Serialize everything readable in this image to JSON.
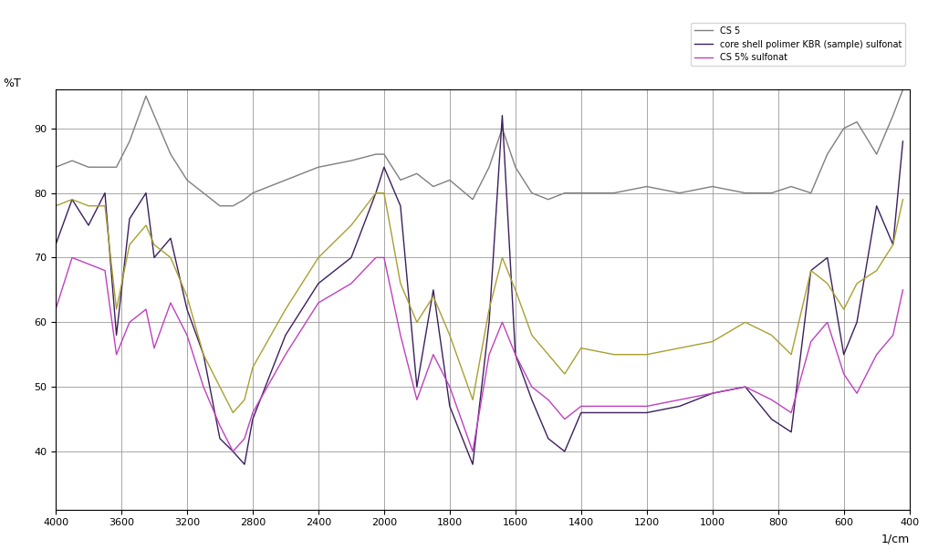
{
  "chart_data": {
    "type": "line",
    "x_label": "1/cm",
    "y_label": "%T",
    "x": [
      4000,
      3900,
      3800,
      3700,
      3630,
      3550,
      3450,
      3400,
      3300,
      3200,
      3100,
      3000,
      2920,
      2850,
      2800,
      2600,
      2400,
      2200,
      2050,
      2000,
      1950,
      1900,
      1850,
      1800,
      1730,
      1680,
      1640,
      1600,
      1550,
      1500,
      1450,
      1400,
      1300,
      1200,
      1100,
      1000,
      900,
      820,
      760,
      700,
      650,
      600,
      560,
      500,
      450,
      420
    ],
    "series": [
      {
        "name": "CS 5",
        "color": "#7f7f7f",
        "values": [
          84,
          85,
          84,
          84,
          84,
          88,
          95,
          92,
          86,
          82,
          80,
          78,
          78,
          79,
          80,
          82,
          84,
          85,
          86,
          86,
          82,
          83,
          81,
          82,
          79,
          84,
          90,
          84,
          80,
          79,
          80,
          80,
          80,
          81,
          80,
          81,
          80,
          80,
          81,
          80,
          86,
          90,
          91,
          86,
          92,
          96
        ]
      },
      {
        "name": "core shell polimer KBR (sample) sulfonat",
        "color": "#3b1f5c",
        "values": [
          72,
          79,
          75,
          80,
          58,
          76,
          80,
          70,
          73,
          62,
          55,
          42,
          40,
          38,
          45,
          58,
          66,
          70,
          80,
          84,
          78,
          50,
          65,
          47,
          38,
          60,
          92,
          55,
          48,
          42,
          40,
          46,
          46,
          46,
          47,
          49,
          50,
          45,
          43,
          68,
          70,
          55,
          60,
          78,
          72,
          88
        ]
      },
      {
        "name": "CS 5% sulfonat",
        "color": "#c040c0",
        "values": [
          62,
          70,
          69,
          68,
          55,
          60,
          62,
          56,
          63,
          58,
          50,
          44,
          40,
          42,
          46,
          55,
          63,
          66,
          70,
          70,
          58,
          48,
          55,
          50,
          40,
          55,
          60,
          55,
          50,
          48,
          45,
          47,
          47,
          47,
          48,
          49,
          50,
          48,
          46,
          57,
          60,
          52,
          49,
          55,
          58,
          65
        ]
      },
      {
        "color": "#a8a030",
        "values": [
          78,
          79,
          78,
          78,
          62,
          72,
          75,
          72,
          70,
          64,
          55,
          50,
          46,
          48,
          53,
          62,
          70,
          75,
          80,
          80,
          66,
          60,
          64,
          58,
          48,
          62,
          70,
          65,
          58,
          55,
          52,
          56,
          55,
          55,
          56,
          57,
          60,
          58,
          55,
          68,
          66,
          62,
          66,
          68,
          72,
          79
        ]
      }
    ],
    "xlim": [
      4000,
      400
    ],
    "xticks": [
      4000,
      3600,
      3200,
      2800,
      2400,
      2000,
      1800,
      1600,
      1400,
      1200,
      1000,
      800,
      600,
      400
    ],
    "ylim": [
      31,
      96
    ],
    "yticks": [
      40,
      50,
      60,
      70,
      80,
      90
    ],
    "grid": true,
    "legend": "upper right"
  }
}
